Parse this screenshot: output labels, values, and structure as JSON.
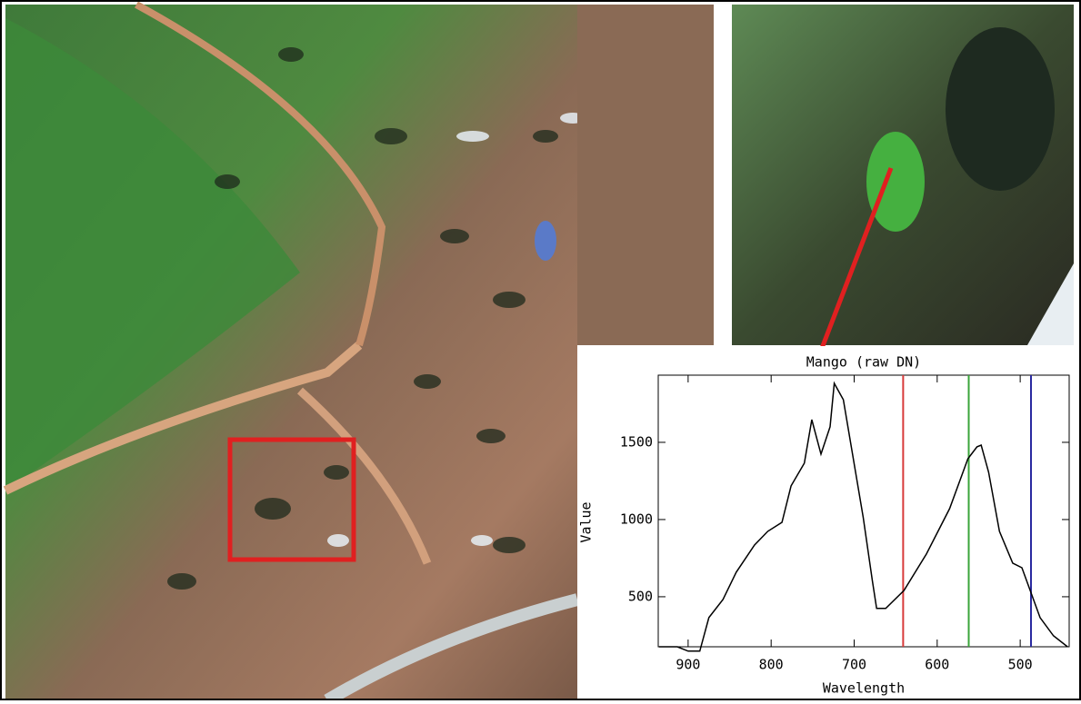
{
  "chart_data": {
    "type": "line",
    "title": "Mango (raw DN)",
    "x_label": "Wavelength",
    "y_label": "Value",
    "x": [
      935,
      913,
      900,
      886,
      875,
      858,
      842,
      820,
      804,
      787,
      776,
      760,
      751,
      740,
      729,
      724,
      713,
      702,
      689,
      678,
      673,
      662,
      640,
      613,
      585,
      563,
      552,
      547,
      538,
      525,
      509,
      498,
      476,
      460,
      443
    ],
    "values": [
      176,
      176,
      148,
      148,
      365,
      482,
      659,
      835,
      924,
      982,
      1218,
      1365,
      1647,
      1424,
      1600,
      1882,
      1776,
      1424,
      1012,
      600,
      424,
      424,
      541,
      776,
      1071,
      1394,
      1471,
      1482,
      1306,
      924,
      718,
      688,
      365,
      247,
      176
    ],
    "color": "#000000",
    "xlim": [
      936,
      441
    ],
    "ylim": [
      176,
      1935
    ],
    "xticks": [
      900,
      800,
      700,
      600,
      500
    ],
    "yticks": [
      500,
      1000,
      1500
    ],
    "markers": [
      {
        "x": 641,
        "color": "#d83a3a"
      },
      {
        "x": 562,
        "color": "#3aa53a"
      },
      {
        "x": 487,
        "color": "#2a2aa0"
      }
    ]
  }
}
